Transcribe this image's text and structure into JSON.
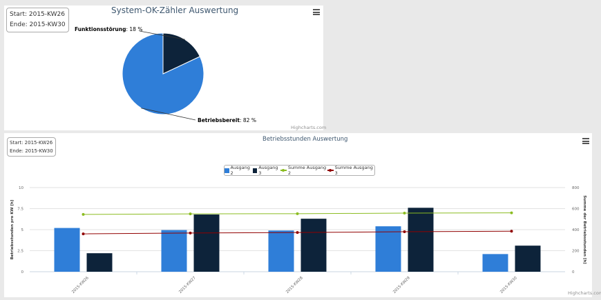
{
  "pie_panel": {
    "start_label": "Start:  2015-KW26",
    "end_label": "Ende:  2015-KW30",
    "title": "System-OK-Zähler Auswertung",
    "credits": "Highcharts.com",
    "menu_icon": "hamburger-menu-icon"
  },
  "bar_panel": {
    "start_label": "Start:  2015-KW26",
    "end_label": "Ende:  2015-KW30",
    "title": "Betriebsstunden Auswertung",
    "credits": "Highcharts.com",
    "menu_icon": "hamburger-menu-icon"
  },
  "chart_data": [
    {
      "type": "pie",
      "title": "System-OK-Zähler Auswertung",
      "slices": [
        {
          "name": "Betriebsbereit",
          "value": 82,
          "label_value": "82 %",
          "color": "#2f7ed8"
        },
        {
          "name": "Funktionsstörung",
          "value": 18,
          "label_value": "18 %",
          "color": "#0d233a"
        }
      ]
    },
    {
      "type": "bar",
      "title": "Betriebsstunden Auswertung",
      "categories": [
        "2015-KW26",
        "2015-KW27",
        "2015-KW28",
        "2015-KW29",
        "2015-KW30"
      ],
      "ylabel": "Betriebsstunden pro KW [h]",
      "y2label": "Summe der Betriebsstunden [h]",
      "ylim": [
        0,
        10
      ],
      "y2lim": [
        0,
        800
      ],
      "yticks": [
        "0",
        "2.5",
        "5",
        "7.5",
        "10"
      ],
      "y2ticks": [
        "0",
        "200",
        "400",
        "600",
        "800"
      ],
      "grid": true,
      "legend_position": "top-center",
      "series": [
        {
          "name": "Ausgang 2",
          "type": "bar",
          "axis": "left",
          "color": "#2f7ed8",
          "values": [
            5.2,
            4.95,
            4.9,
            5.4,
            2.1
          ]
        },
        {
          "name": "Ausgang 3",
          "type": "bar",
          "axis": "left",
          "color": "#0d233a",
          "values": [
            2.2,
            6.8,
            6.3,
            7.6,
            3.1
          ]
        },
        {
          "name": "Summe Ausgang 2",
          "type": "line",
          "axis": "right",
          "color": "#8bbc21",
          "values": [
            545,
            550,
            552,
            557,
            560
          ]
        },
        {
          "name": "Summe Ausgang 3",
          "type": "line",
          "axis": "right",
          "color": "#910000",
          "values": [
            360,
            368,
            373,
            380,
            385
          ]
        }
      ]
    }
  ]
}
